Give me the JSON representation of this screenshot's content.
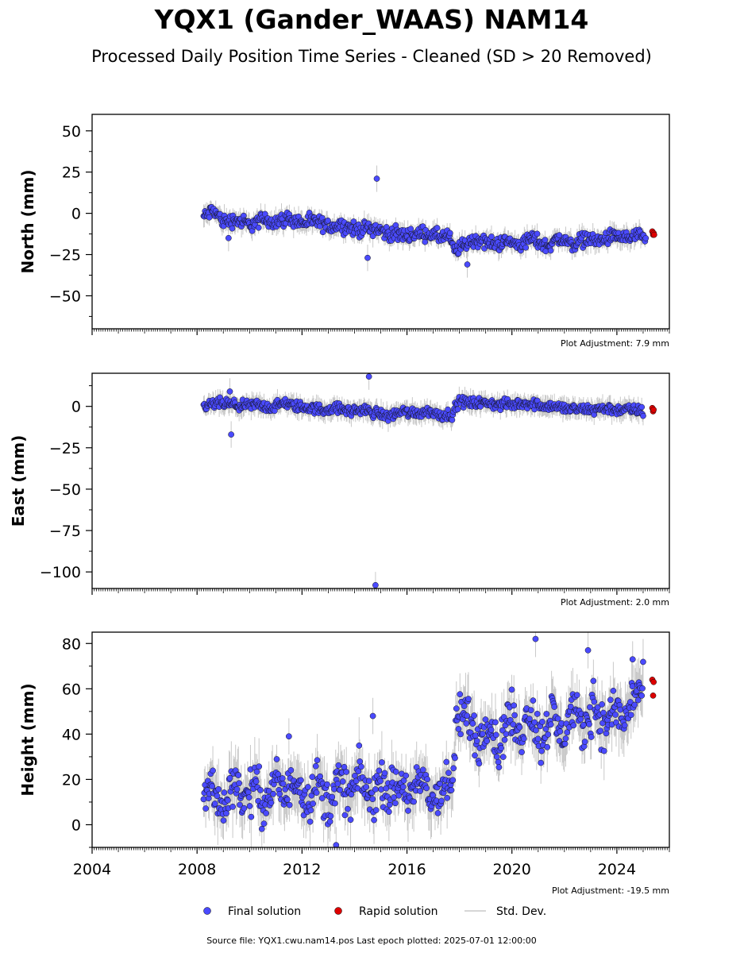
{
  "figure": {
    "title": "YQX1 (Gander_WAAS) NAM14",
    "subtitle": "Processed Daily Position Time Series - Cleaned (SD > 20 Removed)",
    "footer": "Source file: YQX1.cwu.nam14.pos  Last epoch plotted: 2025-07-01 12:00:00"
  },
  "legend": {
    "final_label": "Final solution",
    "rapid_label": "Rapid solution",
    "sd_label": "Std. Dev.",
    "final_color": "#4a4aff",
    "rapid_color": "#dd0000",
    "sd_color": "#c8c8c8"
  },
  "chart_data": [
    {
      "type": "scatter",
      "ylabel": "North (mm)",
      "adjustment_label": "Plot Adjustment: 7.9 mm",
      "xlim": [
        2004.0,
        2026.0
      ],
      "ylim": [
        -70,
        60
      ],
      "yticks": [
        50,
        25,
        0,
        -25,
        -50
      ],
      "ytick_labels": [
        "50",
        "25",
        "0",
        "−25",
        "−50"
      ],
      "series": [
        {
          "name": "Final solution",
          "x": [
            2008.3,
            2008.6,
            2009.0,
            2009.5,
            2010.0,
            2010.5,
            2011.0,
            2011.5,
            2012.0,
            2012.5,
            2013.0,
            2013.5,
            2014.0,
            2014.5,
            2014.8,
            2015.2,
            2015.7,
            2016.2,
            2016.7,
            2017.2,
            2017.6,
            2017.8,
            2018.3,
            2018.8,
            2019.3,
            2019.8,
            2020.3,
            2020.8,
            2021.3,
            2021.8,
            2022.3,
            2022.8,
            2023.3,
            2023.8,
            2024.3,
            2024.8,
            2025.1
          ],
          "y": [
            -2,
            2,
            -5,
            -4,
            -7,
            -4,
            -5,
            -3,
            -6,
            -5,
            -8,
            -7,
            -10,
            -9,
            -9,
            -12,
            -13,
            -13,
            -12,
            -14,
            -14,
            -23,
            -18,
            -16,
            -19,
            -17,
            -19,
            -15,
            -20,
            -15,
            -19,
            -15,
            -17,
            -14,
            -15,
            -14,
            -17
          ]
        },
        {
          "name": "Rapid solution",
          "x": [
            2025.35,
            2025.38,
            2025.4,
            2025.42
          ],
          "y": [
            -11,
            -13,
            -12,
            -13
          ]
        }
      ],
      "outliers": [
        {
          "x": 2014.85,
          "y": 21
        },
        {
          "x": 2018.3,
          "y": -31
        },
        {
          "x": 2014.5,
          "y": -27
        },
        {
          "x": 2009.2,
          "y": -15
        }
      ]
    },
    {
      "type": "scatter",
      "ylabel": "East (mm)",
      "adjustment_label": "Plot Adjustment: 2.0 mm",
      "xlim": [
        2004.0,
        2026.0
      ],
      "ylim": [
        -110,
        20
      ],
      "yticks": [
        0,
        -25,
        -50,
        -75,
        -100
      ],
      "ytick_labels": [
        "0",
        "−25",
        "−50",
        "−75",
        "−100"
      ],
      "series": [
        {
          "name": "Final solution",
          "x": [
            2008.3,
            2008.8,
            2009.3,
            2009.8,
            2010.3,
            2010.8,
            2011.3,
            2011.8,
            2012.3,
            2012.8,
            2013.3,
            2013.8,
            2014.3,
            2014.8,
            2015.3,
            2015.8,
            2016.3,
            2016.8,
            2017.3,
            2017.7,
            2018.0,
            2018.5,
            2019.0,
            2019.5,
            2020.0,
            2020.5,
            2021.0,
            2021.5,
            2022.0,
            2022.5,
            2023.0,
            2023.5,
            2024.0,
            2024.5,
            2025.0
          ],
          "y": [
            0,
            2,
            1,
            0,
            1,
            -1,
            2,
            0,
            -1,
            -2,
            -1,
            -3,
            -2,
            -4,
            -6,
            -3,
            -4,
            -3,
            -5,
            -5,
            3,
            2,
            2,
            1,
            1,
            2,
            1,
            0,
            -1,
            -2,
            -2,
            -1,
            -2,
            -2,
            -3
          ]
        },
        {
          "name": "Rapid solution",
          "x": [
            2025.35,
            2025.38,
            2025.4
          ],
          "y": [
            -1,
            -3,
            -2
          ]
        }
      ],
      "outliers": [
        {
          "x": 2014.55,
          "y": 18
        },
        {
          "x": 2014.8,
          "y": -108
        },
        {
          "x": 2009.3,
          "y": -17
        },
        {
          "x": 2009.25,
          "y": 9
        }
      ]
    },
    {
      "type": "scatter",
      "ylabel": "Height (mm)",
      "adjustment_label": "Plot Adjustment: -19.5 mm",
      "xlim": [
        2004.0,
        2026.0
      ],
      "ylim": [
        -10,
        85
      ],
      "yticks": [
        80,
        60,
        40,
        20,
        0
      ],
      "ytick_labels": [
        "80",
        "60",
        "40",
        "20",
        "0"
      ],
      "xticks": [
        2004,
        2008,
        2012,
        2016,
        2020,
        2024
      ],
      "xtick_labels": [
        "2004",
        "2008",
        "2012",
        "2016",
        "2020",
        "2024"
      ],
      "series": [
        {
          "name": "Final solution",
          "x": [
            2008.3,
            2008.6,
            2009.0,
            2009.4,
            2009.8,
            2010.2,
            2010.6,
            2011.0,
            2011.4,
            2011.8,
            2012.2,
            2012.6,
            2013.0,
            2013.4,
            2013.8,
            2014.2,
            2014.6,
            2015.0,
            2015.4,
            2015.8,
            2016.2,
            2016.6,
            2017.0,
            2017.4,
            2017.7,
            2017.9,
            2018.3,
            2018.7,
            2019.1,
            2019.5,
            2019.9,
            2020.3,
            2020.7,
            2021.1,
            2021.5,
            2021.9,
            2022.3,
            2022.7,
            2023.1,
            2023.5,
            2023.9,
            2024.3,
            2024.7,
            2025.0
          ],
          "y": [
            12,
            18,
            5,
            22,
            10,
            18,
            8,
            20,
            12,
            22,
            10,
            20,
            8,
            20,
            12,
            22,
            10,
            20,
            14,
            18,
            12,
            20,
            10,
            18,
            15,
            45,
            50,
            35,
            48,
            32,
            50,
            38,
            52,
            36,
            50,
            38,
            52,
            40,
            55,
            42,
            52,
            45,
            60,
            58
          ]
        },
        {
          "name": "Rapid solution",
          "x": [
            2025.35,
            2025.38,
            2025.4
          ],
          "y": [
            64,
            57,
            63
          ]
        }
      ],
      "outliers": [
        {
          "x": 2020.9,
          "y": 82
        },
        {
          "x": 2022.9,
          "y": 77
        },
        {
          "x": 2014.7,
          "y": 48
        },
        {
          "x": 2011.5,
          "y": 39
        },
        {
          "x": 2013.3,
          "y": -9
        },
        {
          "x": 2024.6,
          "y": 73
        }
      ]
    }
  ]
}
